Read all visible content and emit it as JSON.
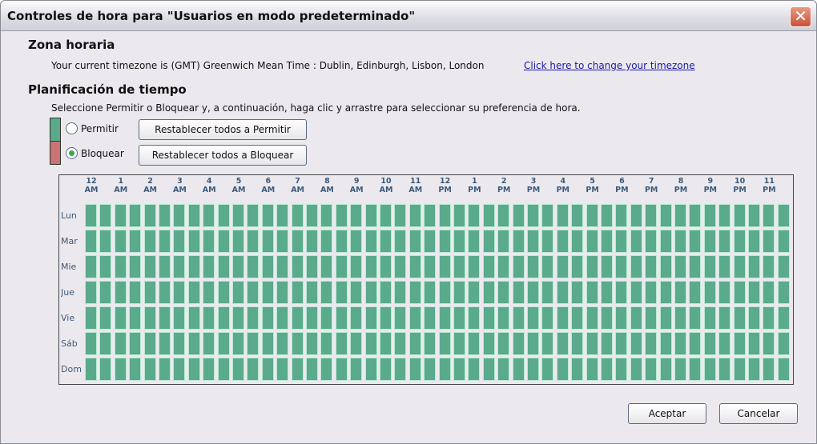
{
  "window": {
    "title": "Controles de hora para \"Usuarios en modo predeterminado\"",
    "close_icon": "close-icon"
  },
  "timezone": {
    "heading": "Zona horaria",
    "text": "Your current timezone is (GMT) Greenwich Mean Time : Dublin, Edinburgh, Lisbon, London",
    "link": "Click here to change your timezone"
  },
  "schedule": {
    "heading": "Planificación de tiempo",
    "instructions": "Seleccione Permitir o Bloquear y, a continuación, haga clic y arrastre para seleccionar su preferencia de hora.",
    "allow_label": "Permitir",
    "block_label": "Bloquear",
    "selected_mode": "Bloquear",
    "reset_allow": "Restablecer todos a Permitir",
    "reset_block": "Restablecer todos a Bloquear",
    "colors": {
      "allow": "#5aaa8c",
      "block": "#c87474"
    },
    "hours": [
      [
        "12",
        "AM"
      ],
      [
        "1",
        "AM"
      ],
      [
        "2",
        "AM"
      ],
      [
        "3",
        "AM"
      ],
      [
        "4",
        "AM"
      ],
      [
        "5",
        "AM"
      ],
      [
        "6",
        "AM"
      ],
      [
        "7",
        "AM"
      ],
      [
        "8",
        "AM"
      ],
      [
        "9",
        "AM"
      ],
      [
        "10",
        "AM"
      ],
      [
        "11",
        "AM"
      ],
      [
        "12",
        "PM"
      ],
      [
        "1",
        "PM"
      ],
      [
        "2",
        "PM"
      ],
      [
        "3",
        "PM"
      ],
      [
        "4",
        "PM"
      ],
      [
        "5",
        "PM"
      ],
      [
        "6",
        "PM"
      ],
      [
        "7",
        "PM"
      ],
      [
        "8",
        "PM"
      ],
      [
        "9",
        "PM"
      ],
      [
        "10",
        "PM"
      ],
      [
        "11",
        "PM"
      ]
    ],
    "days": [
      "Lun",
      "Mar",
      "Mie",
      "Jue",
      "Vie",
      "Sáb",
      "Dom"
    ],
    "slots_per_day": 48,
    "cell_state": "allow"
  },
  "footer": {
    "ok": "Aceptar",
    "cancel": "Cancelar"
  }
}
